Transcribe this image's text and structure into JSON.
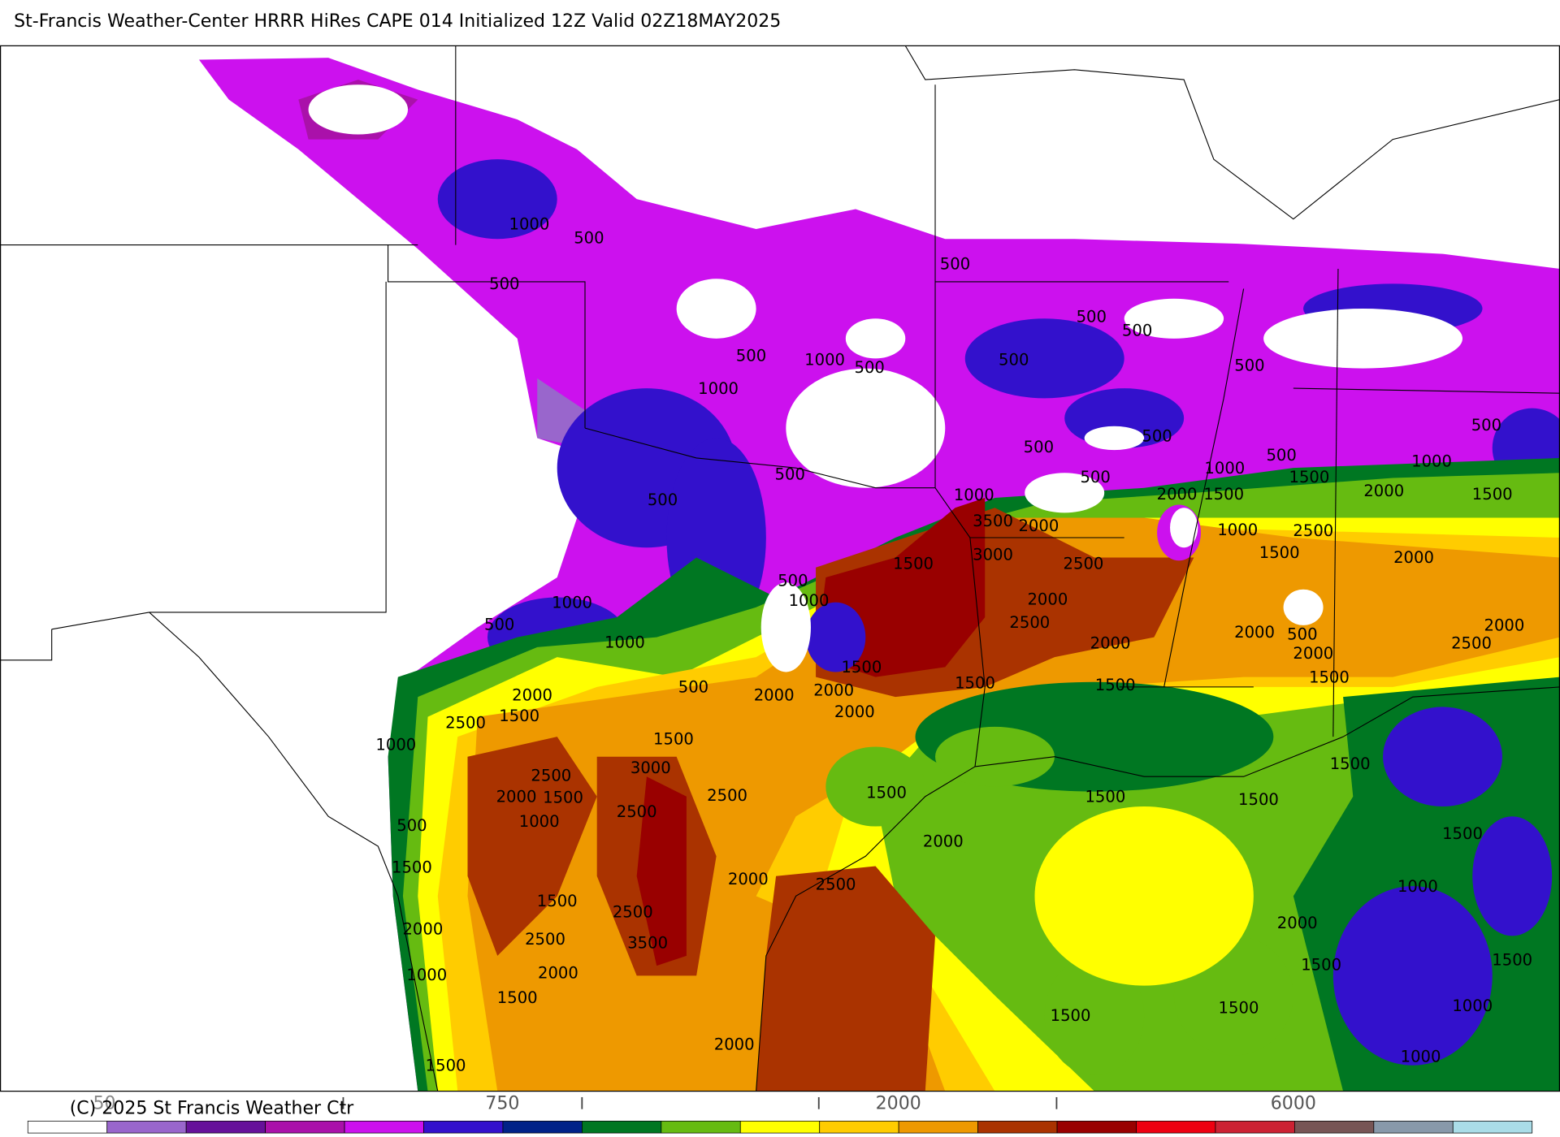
{
  "header": {
    "title": "St-Francis Weather-Center HRRR HiRes CAPE  014 Initialized  12Z Valid 02Z18MAY2025"
  },
  "footer": {
    "copyright": "(C) 2025 St Francis Weather Ctr"
  },
  "colorbar": {
    "labels": [
      "50",
      "750",
      "2000",
      "6000"
    ]
  },
  "contour_labels": [
    "1000",
    "500",
    "500",
    "500",
    "500",
    "500",
    "500",
    "1000",
    "500",
    "500",
    "500",
    "1000",
    "500",
    "500",
    "500",
    "1000",
    "500",
    "1000",
    "500",
    "500",
    "1500",
    "2000",
    "1500",
    "2000",
    "1500",
    "500",
    "1000",
    "3500",
    "2000",
    "2500",
    "1000",
    "3000",
    "1500",
    "2500",
    "1500",
    "2000",
    "500",
    "1000",
    "2000",
    "1000",
    "500",
    "2500",
    "500",
    "2000",
    "2000",
    "1000",
    "2000",
    "2500",
    "1500",
    "2000",
    "1500",
    "1500",
    "1500",
    "500",
    "2000",
    "2000",
    "2000",
    "2000",
    "2500",
    "1500",
    "1500",
    "1000",
    "3000",
    "1500",
    "2500",
    "2000",
    "1500",
    "2500",
    "1500",
    "1500",
    "1500",
    "1000",
    "2500",
    "500",
    "1500",
    "2000",
    "1500",
    "2000",
    "2500",
    "1000",
    "1500",
    "2500",
    "2000",
    "2000",
    "2500",
    "3500",
    "1500",
    "1500",
    "2000",
    "1000",
    "1500",
    "1000",
    "1500",
    "1500",
    "2000",
    "1000",
    "1500"
  ]
}
